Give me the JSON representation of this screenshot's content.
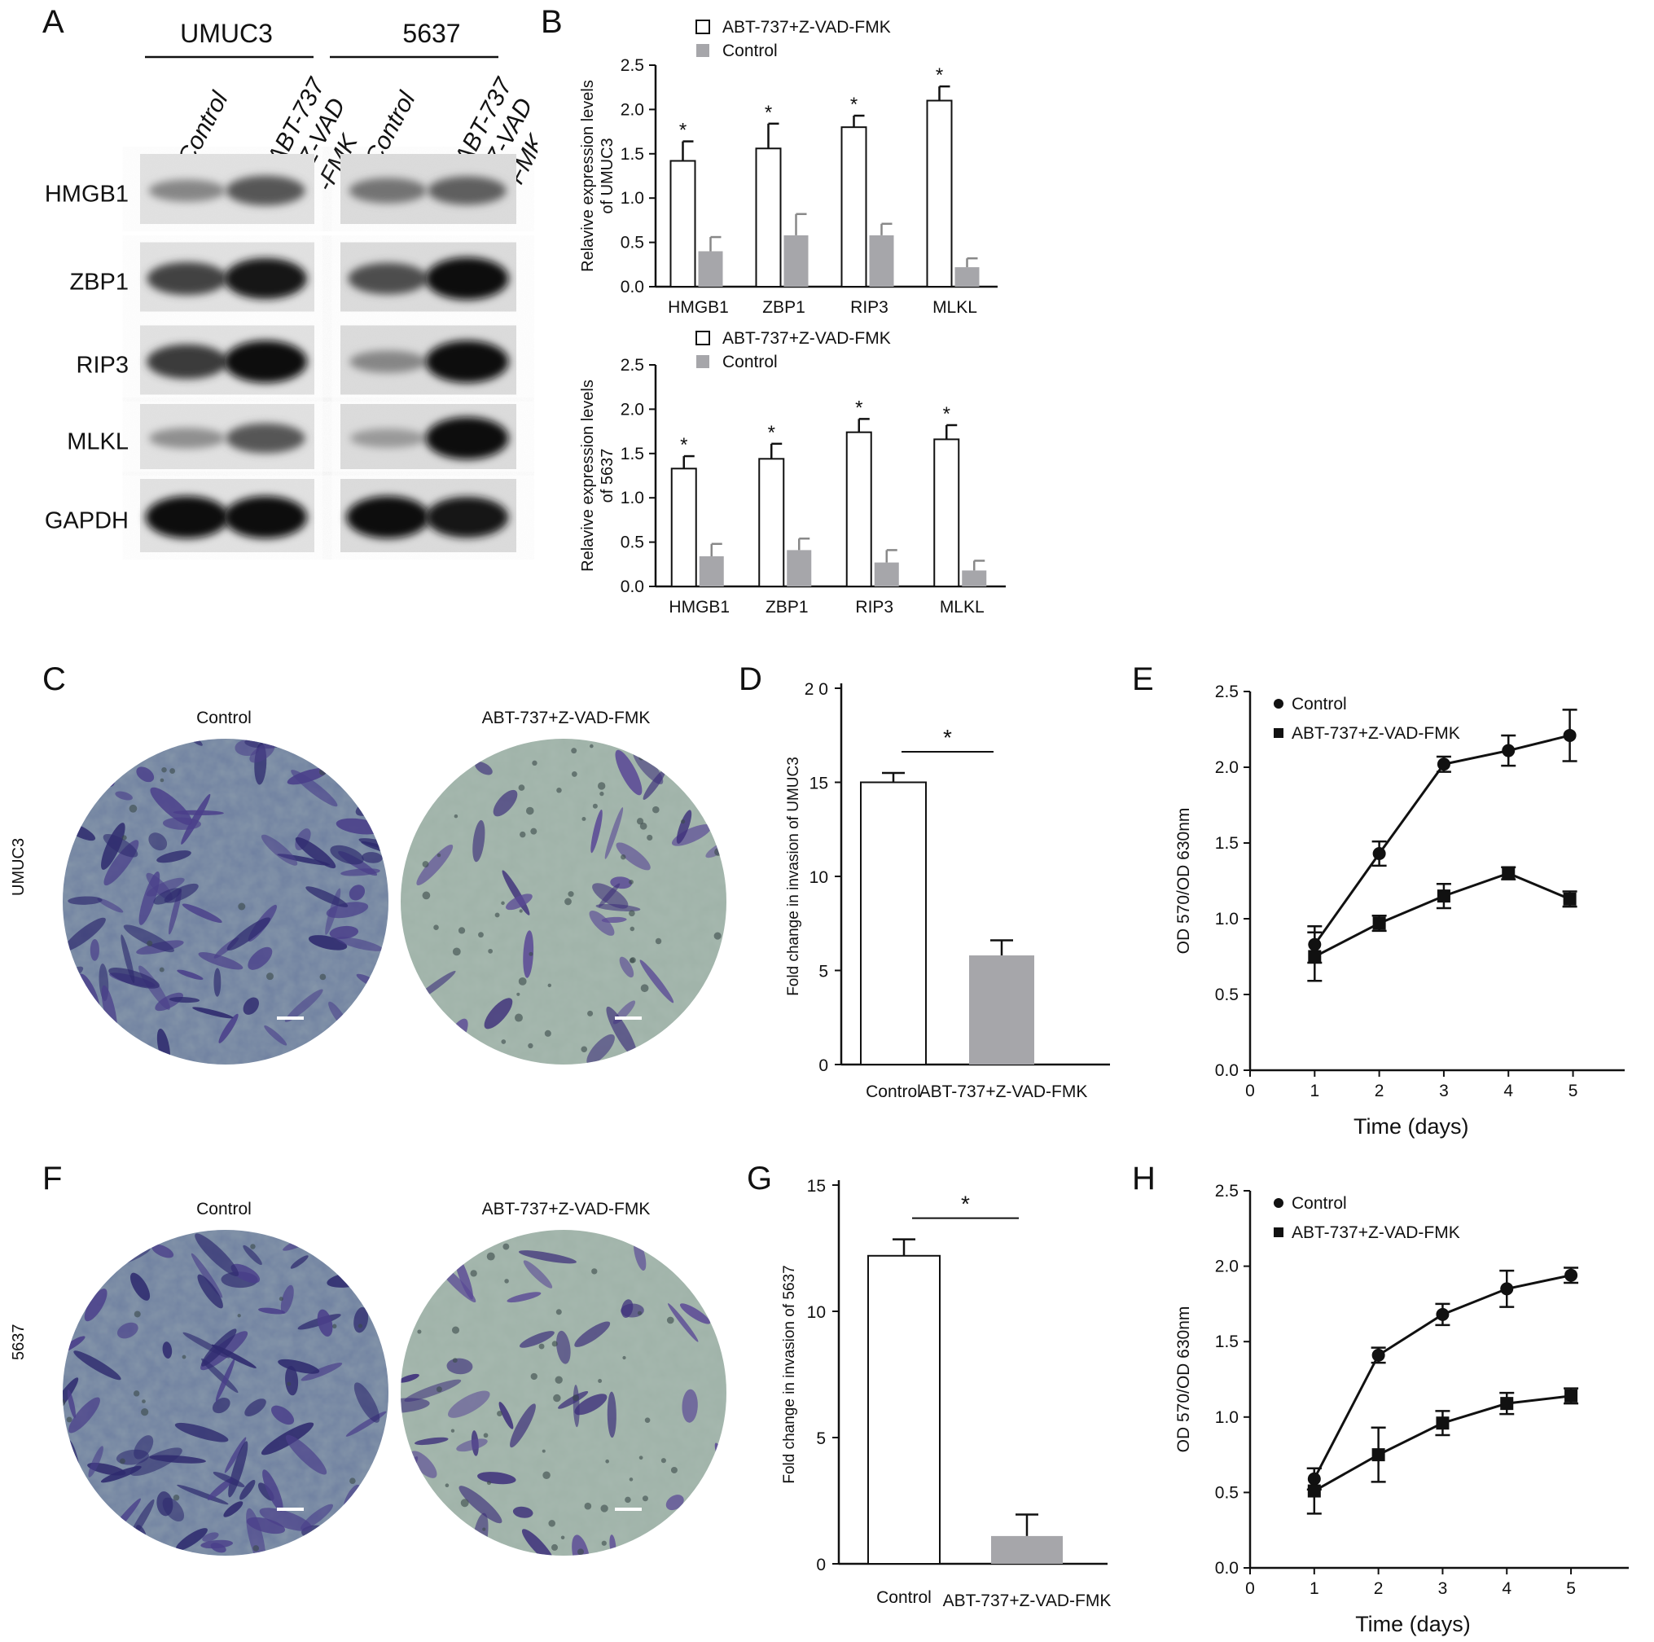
{
  "panel_labels": {
    "A": "A",
    "B": "B",
    "C": "C",
    "D": "D",
    "E": "E",
    "F": "F",
    "G": "G",
    "H": "H"
  },
  "western_blot": {
    "cell_lines": [
      "UMUC3",
      "5637"
    ],
    "lane_labels": [
      "Control",
      "ABT-737\n+Z-VAD\n-FMK",
      "Control",
      "ABT-737\n+Z-VAD\n-FMK"
    ],
    "proteins": [
      "HMGB1",
      "ZBP1",
      "RIP3",
      "MLKL",
      "GAPDH"
    ],
    "band_intensity": [
      [
        0.35,
        0.6,
        0.45,
        0.55
      ],
      [
        0.7,
        0.95,
        0.65,
        1.0
      ],
      [
        0.75,
        1.0,
        0.35,
        1.0
      ],
      [
        0.3,
        0.6,
        0.25,
        1.0
      ],
      [
        1.0,
        1.0,
        1.0,
        0.95
      ]
    ]
  },
  "chart_data": [
    {
      "id": "B-top",
      "type": "bar",
      "ylabel": "Relavive expression levels\nof UMUC3",
      "ylim": [
        0,
        2.5
      ],
      "yticks": [
        "0.0",
        "0.5",
        "1.0",
        "1.5",
        "2.0",
        "2.5"
      ],
      "categories": [
        "HMGB1",
        "ZBP1",
        "RIP3",
        "MLKL"
      ],
      "series": [
        {
          "name": "ABT-737+Z-VAD-FMK",
          "values": [
            1.42,
            1.56,
            1.8,
            2.1
          ],
          "errors": [
            0.22,
            0.28,
            0.13,
            0.16
          ],
          "color": "#ffffff"
        },
        {
          "name": "Control",
          "values": [
            0.4,
            0.58,
            0.58,
            0.22
          ],
          "errors": [
            0.16,
            0.24,
            0.13,
            0.1
          ],
          "color": "#a6a6aa"
        }
      ],
      "annotations": [
        "*",
        "*",
        "*",
        "*"
      ],
      "legend": "top-left"
    },
    {
      "id": "B-bottom",
      "type": "bar",
      "ylabel": "Relavive expression levels\nof 5637",
      "ylim": [
        0,
        2.5
      ],
      "yticks": [
        "0.0",
        "0.5",
        "1.0",
        "1.5",
        "2.0",
        "2.5"
      ],
      "categories": [
        "HMGB1",
        "ZBP1",
        "RIP3",
        "MLKL"
      ],
      "series": [
        {
          "name": "ABT-737+Z-VAD-FMK",
          "values": [
            1.33,
            1.44,
            1.74,
            1.66
          ],
          "errors": [
            0.14,
            0.17,
            0.15,
            0.16
          ],
          "color": "#ffffff"
        },
        {
          "name": "Control",
          "values": [
            0.34,
            0.41,
            0.27,
            0.18
          ],
          "errors": [
            0.14,
            0.13,
            0.14,
            0.11
          ],
          "color": "#a6a6aa"
        }
      ],
      "annotations": [
        "*",
        "*",
        "*",
        "*"
      ],
      "legend": "top-left"
    },
    {
      "id": "D",
      "type": "bar",
      "ylabel": "Fold change in invasion of UMUC3",
      "ylim": [
        0,
        20
      ],
      "yticks": [
        "0",
        "5",
        "10",
        "15",
        "20"
      ],
      "yticks_printed": [
        "0",
        "5",
        "10",
        "15",
        "2 0"
      ],
      "categories": [
        "Control",
        "ABT-737+Z-VAD-FMK"
      ],
      "values": [
        15.0,
        5.8
      ],
      "errors": [
        0.5,
        0.8
      ],
      "colors": [
        "#ffffff",
        "#a6a6aa"
      ],
      "significance": "*"
    },
    {
      "id": "E",
      "type": "line",
      "xlabel": "Time (days)",
      "ylabel": "OD 570/OD 630nm",
      "xlim": [
        0,
        5.8
      ],
      "xticks": [
        0,
        1,
        2,
        3,
        4,
        5
      ],
      "ylim": [
        0,
        2.5
      ],
      "yticks": [
        "0.0",
        "0.5",
        "1.0",
        "1.5",
        "2.0",
        "2.5"
      ],
      "series": [
        {
          "name": "Control",
          "marker": "circle",
          "x": [
            1,
            2,
            3,
            4,
            4.95
          ],
          "y": [
            0.83,
            1.43,
            2.02,
            2.11,
            2.21
          ],
          "errors": [
            0.12,
            0.08,
            0.05,
            0.1,
            0.17
          ]
        },
        {
          "name": "ABT-737+Z-VAD-FMK",
          "marker": "square",
          "x": [
            1,
            2,
            3,
            4,
            4.95
          ],
          "y": [
            0.75,
            0.97,
            1.15,
            1.3,
            1.13
          ],
          "errors": [
            0.16,
            0.05,
            0.08,
            0.04,
            0.05
          ]
        }
      ],
      "legend": "top-left"
    },
    {
      "id": "G",
      "type": "bar",
      "ylabel": "Fold change in invasion of 5637",
      "ylim": [
        0,
        15
      ],
      "yticks": [
        "0",
        "5",
        "10",
        "15"
      ],
      "categories": [
        "Control",
        "ABT-737+Z-VAD-FMK"
      ],
      "values": [
        12.2,
        1.1
      ],
      "errors": [
        0.65,
        0.85
      ],
      "colors": [
        "#ffffff",
        "#a6a6aa"
      ],
      "significance": "*"
    },
    {
      "id": "H",
      "type": "line",
      "xlabel": "Time (days)",
      "ylabel": "OD 570/OD 630nm",
      "xlim": [
        0,
        5.9
      ],
      "xticks": [
        0,
        1,
        2,
        3,
        4,
        5
      ],
      "ylim": [
        0,
        2.5
      ],
      "yticks": [
        "0.0",
        "0.5",
        "1.0",
        "1.5",
        "2.0",
        "2.5"
      ],
      "series": [
        {
          "name": "Control",
          "marker": "circle",
          "x": [
            1,
            2,
            3,
            4,
            5
          ],
          "y": [
            0.59,
            1.41,
            1.68,
            1.85,
            1.94
          ],
          "errors": [
            0.07,
            0.05,
            0.07,
            0.12,
            0.05
          ]
        },
        {
          "name": "ABT-737+Z-VAD-FMK",
          "marker": "square",
          "x": [
            1,
            2,
            3,
            4,
            5
          ],
          "y": [
            0.51,
            0.75,
            0.96,
            1.09,
            1.14
          ],
          "errors": [
            0.15,
            0.18,
            0.08,
            0.07,
            0.05
          ]
        }
      ],
      "legend": "top-left"
    }
  ],
  "micrographs": {
    "panel_C": {
      "row_label": "UMUC3",
      "titles": [
        "Control",
        "ABT-737+Z-VAD-FMK"
      ],
      "density": [
        1.0,
        0.35
      ]
    },
    "panel_F": {
      "row_label": "5637",
      "titles": [
        "Control",
        "ABT-737+Z-VAD-FMK"
      ],
      "density": [
        0.95,
        0.4
      ]
    }
  },
  "colors": {
    "control_bar": "#a6a6aa",
    "treated_bar": "#ffffff",
    "stain_dark": "#3f2f7c",
    "stain_bg": "#8fa6a2"
  }
}
